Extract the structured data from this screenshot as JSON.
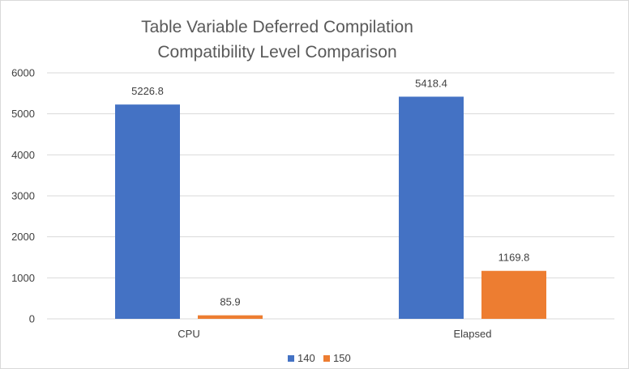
{
  "chart_data": {
    "type": "bar",
    "title_lines": [
      "Table Variable Deferred Compilation",
      "Compatibility Level Comparison"
    ],
    "categories": [
      "CPU",
      "Elapsed"
    ],
    "series": [
      {
        "name": "140",
        "values": [
          5226.8,
          5418.4
        ],
        "color": "#4472C4"
      },
      {
        "name": "150",
        "values": [
          85.9,
          1169.8
        ],
        "color": "#ED7D31"
      }
    ],
    "data_labels": [
      [
        "5226.8",
        "5418.4"
      ],
      [
        "85.9",
        "1169.8"
      ]
    ],
    "yticks": [
      "0",
      "1000",
      "2000",
      "3000",
      "4000",
      "5000",
      "6000"
    ],
    "ylim": [
      0,
      6000
    ],
    "grid": true,
    "legend": "bottom"
  }
}
